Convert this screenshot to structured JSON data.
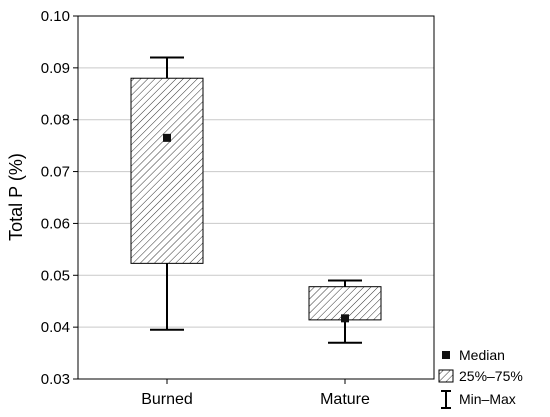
{
  "chart_data": {
    "type": "boxplot",
    "ylabel": "Total P (%)",
    "ylim": [
      0.03,
      0.1
    ],
    "y_ticks": [
      "0.03",
      "0.04",
      "0.05",
      "0.06",
      "0.07",
      "0.08",
      "0.09",
      "0.10"
    ],
    "grid": true,
    "categories": [
      "Burned",
      "Mature"
    ],
    "boxes": [
      {
        "category": "Burned",
        "min": 0.0395,
        "q1": 0.0523,
        "median": 0.0765,
        "q3": 0.088,
        "max": 0.092
      },
      {
        "category": "Mature",
        "min": 0.037,
        "q1": 0.0414,
        "median": 0.0417,
        "q3": 0.0478,
        "max": 0.049
      }
    ],
    "legend": {
      "position": "bottom-right",
      "items": [
        "Median",
        "25%–75%",
        "Min–Max"
      ]
    }
  }
}
